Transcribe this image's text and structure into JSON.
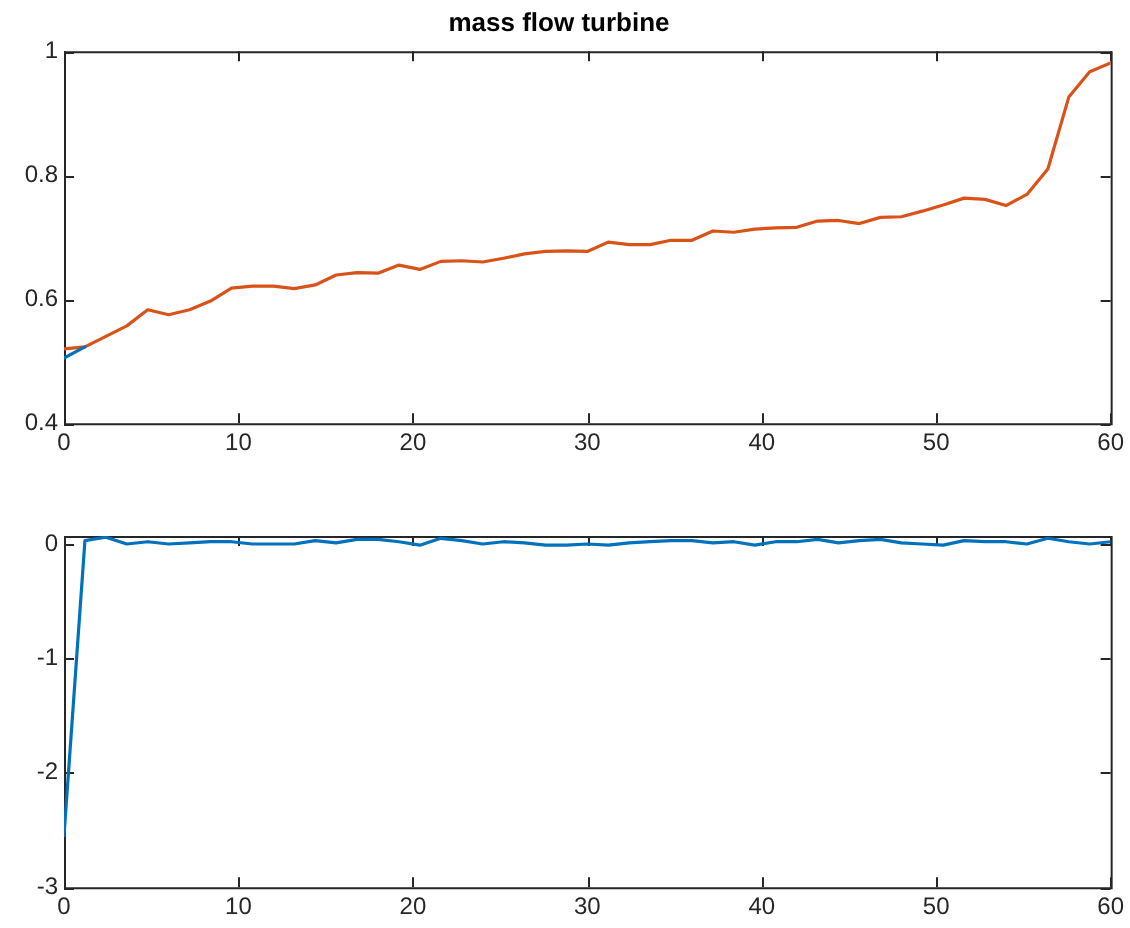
{
  "chart_data": [
    {
      "type": "line",
      "title": "mass flow turbine",
      "x": [
        0,
        1.2,
        2.4,
        3.6,
        4.8,
        6,
        7.2,
        8.4,
        9.6,
        10.8,
        12,
        13.2,
        14.4,
        15.6,
        16.8,
        18,
        19.2,
        20.4,
        21.6,
        22.8,
        24,
        25.2,
        26.4,
        27.6,
        28.8,
        30,
        31.2,
        32.4,
        33.6,
        34.8,
        36,
        37.2,
        38.4,
        39.6,
        40.8,
        42,
        43.2,
        44.4,
        45.6,
        46.8,
        48,
        49.2,
        50.4,
        51.6,
        52.8,
        54,
        55.2,
        56.4,
        57.6,
        58.8,
        60
      ],
      "series": [
        {
          "color": "#0072bd",
          "values": [
            0.505,
            0.523,
            null,
            null,
            null,
            null,
            null,
            null,
            null,
            null,
            null,
            null,
            null,
            null,
            null,
            null,
            null,
            null,
            null,
            null,
            null,
            null,
            null,
            null,
            null,
            null,
            null,
            null,
            null,
            null,
            null,
            null,
            null,
            null,
            null,
            null,
            null,
            null,
            null,
            null,
            null,
            null,
            null,
            null,
            null,
            null,
            null,
            null,
            null,
            null,
            null
          ]
        },
        {
          "color": "#d95319",
          "values": [
            0.52,
            0.523,
            0.54,
            0.557,
            0.583,
            0.575,
            0.583,
            0.597,
            0.618,
            0.621,
            0.621,
            0.617,
            0.623,
            0.639,
            0.643,
            0.642,
            0.655,
            0.648,
            0.661,
            0.662,
            0.66,
            0.666,
            0.673,
            0.677,
            0.678,
            0.677,
            0.692,
            0.688,
            0.688,
            0.695,
            0.695,
            0.71,
            0.708,
            0.713,
            0.715,
            0.716,
            0.726,
            0.727,
            0.722,
            0.732,
            0.733,
            0.742,
            0.752,
            0.763,
            0.761,
            0.751,
            0.769,
            0.81,
            0.926,
            0.967,
            0.981
          ]
        }
      ],
      "xlim": [
        0,
        60
      ],
      "xticks": [
        0,
        10,
        20,
        30,
        40,
        50,
        60
      ],
      "ylim": [
        0.4,
        1
      ],
      "yticks": [
        0.4,
        0.6,
        0.8,
        1
      ],
      "grid": false,
      "legend": false
    },
    {
      "type": "line",
      "x": [
        0,
        1.2,
        2.4,
        3.6,
        4.8,
        6,
        7.2,
        8.4,
        9.6,
        10.8,
        12,
        13.2,
        14.4,
        15.6,
        16.8,
        18,
        19.2,
        20.4,
        21.6,
        22.8,
        24,
        25.2,
        26.4,
        27.6,
        28.8,
        30,
        31.2,
        32.4,
        33.6,
        34.8,
        36,
        37.2,
        38.4,
        39.6,
        40.8,
        42,
        43.2,
        44.4,
        45.6,
        46.8,
        48,
        49.2,
        50.4,
        51.6,
        52.8,
        54,
        55.2,
        56.4,
        57.6,
        58.8,
        60
      ],
      "series": [
        {
          "color": "#0072bd",
          "values": [
            -2.55,
            0.03,
            0.06,
            0.0,
            0.02,
            0.0,
            0.01,
            0.02,
            0.02,
            0.0,
            0.0,
            0.0,
            0.03,
            0.01,
            0.04,
            0.04,
            0.02,
            -0.01,
            0.05,
            0.03,
            0.0,
            0.02,
            0.01,
            -0.01,
            -0.01,
            0.0,
            -0.01,
            0.01,
            0.02,
            0.03,
            0.03,
            0.01,
            0.02,
            -0.01,
            0.02,
            0.02,
            0.04,
            0.01,
            0.03,
            0.04,
            0.01,
            0.0,
            -0.01,
            0.03,
            0.02,
            0.02,
            0.0,
            0.05,
            0.02,
            0.0,
            0.02
          ]
        }
      ],
      "xlim": [
        0,
        60
      ],
      "xticks": [
        0,
        10,
        20,
        30,
        40,
        50,
        60
      ],
      "ylim": [
        -3,
        0.07
      ],
      "yticks": [
        -3,
        -2,
        -1,
        0
      ],
      "grid": false,
      "legend": false
    }
  ]
}
